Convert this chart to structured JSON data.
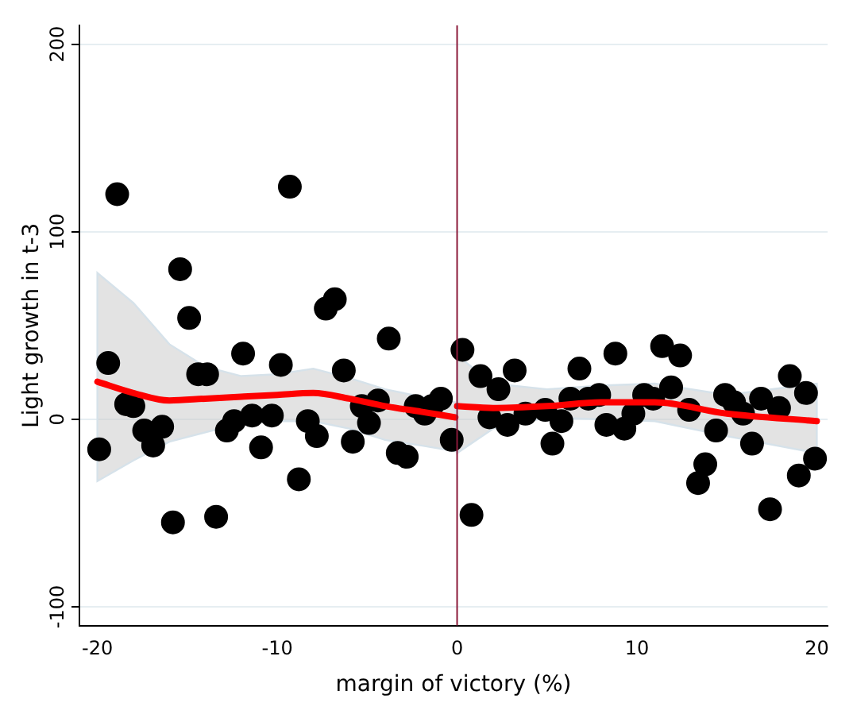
{
  "chart_data": {
    "type": "scatter",
    "xlabel": "margin of victory (%)",
    "ylabel": "Light growth in t-3",
    "xlim": [
      -21,
      20.6
    ],
    "ylim": [
      -110,
      210
    ],
    "xticks": [
      -20,
      -10,
      0,
      10,
      20
    ],
    "yticks": [
      -100,
      0,
      100,
      200
    ],
    "grid": "y",
    "legend": false,
    "marker": "circle",
    "ref_lines": [
      {
        "axis": "x",
        "value": 0,
        "color": "#8b1a3a"
      }
    ],
    "series": [
      {
        "color": "#000000",
        "x": [
          -19.9,
          -19.4,
          -18.9,
          -18.4,
          -18.0,
          -17.4,
          -16.9,
          -16.4,
          -15.8,
          -15.4,
          -14.9,
          -14.4,
          -13.9,
          -13.4,
          -12.8,
          -12.4,
          -11.9,
          -11.4,
          -10.9,
          -10.3,
          -9.8,
          -9.3,
          -8.8,
          -8.3,
          -7.8,
          -7.3,
          -6.8,
          -6.3,
          -5.8,
          -5.3,
          -4.9,
          -4.4,
          -3.8,
          -3.3,
          -2.8,
          -2.3,
          -1.8,
          -1.4,
          -0.9,
          -0.3,
          0.3,
          1.3,
          2.3,
          3.2,
          1.8,
          2.8,
          0.8,
          3.8,
          4.9,
          5.3,
          5.8,
          6.3,
          6.8,
          7.3,
          7.9,
          8.3,
          8.8,
          9.3,
          9.8,
          10.4,
          10.9,
          11.4,
          11.9,
          12.4,
          12.9,
          13.4,
          13.8,
          14.4,
          14.9,
          15.4,
          15.9,
          16.4,
          16.9,
          17.4,
          17.9,
          18.5,
          19.0,
          19.4,
          19.9
        ],
        "values": [
          -16,
          30,
          120,
          8,
          7,
          -6,
          -14,
          -4,
          -55,
          80,
          54,
          24,
          24,
          -52,
          -6,
          -1,
          35,
          2,
          -15,
          2,
          29,
          124,
          -32,
          -1,
          -9,
          59,
          64,
          26,
          -12,
          7,
          -2,
          10,
          43,
          -18,
          -20,
          7,
          3,
          7,
          11,
          -11,
          37,
          23,
          16,
          26,
          1,
          -3,
          -51,
          3,
          5,
          -13,
          -1,
          11,
          27,
          11,
          13,
          -3,
          35,
          -5,
          3,
          13,
          11,
          39,
          17,
          34,
          5,
          -34,
          -24,
          -6,
          13,
          9,
          3,
          -13,
          11,
          -48,
          6,
          23,
          -30,
          14,
          -21
        ]
      },
      {
        "type": "line",
        "color": "#ff0000",
        "marker": "none",
        "x": [
          -20,
          -18,
          -16,
          -14,
          -12,
          -10,
          -8,
          -6,
          -4,
          -2,
          -0.1
        ],
        "values": [
          20,
          14,
          10,
          11,
          12,
          13,
          14,
          11,
          7,
          4,
          1
        ],
        "lower": [
          -33,
          -22,
          -12,
          -7,
          -2,
          -1,
          -1,
          -5,
          -11,
          -14,
          -17
        ],
        "upper": [
          78,
          62,
          40,
          28,
          23,
          24,
          27,
          22,
          16,
          12,
          9
        ]
      },
      {
        "type": "line",
        "color": "#ff0000",
        "marker": "none",
        "x": [
          0,
          2,
          5,
          8,
          11,
          15,
          20
        ],
        "values": [
          7,
          6,
          7,
          9,
          9,
          3,
          -1
        ],
        "lower": [
          -18,
          -5,
          1,
          0,
          -1,
          -9,
          -18
        ],
        "upper": [
          34,
          19,
          16,
          18,
          19,
          13,
          19
        ]
      }
    ]
  }
}
